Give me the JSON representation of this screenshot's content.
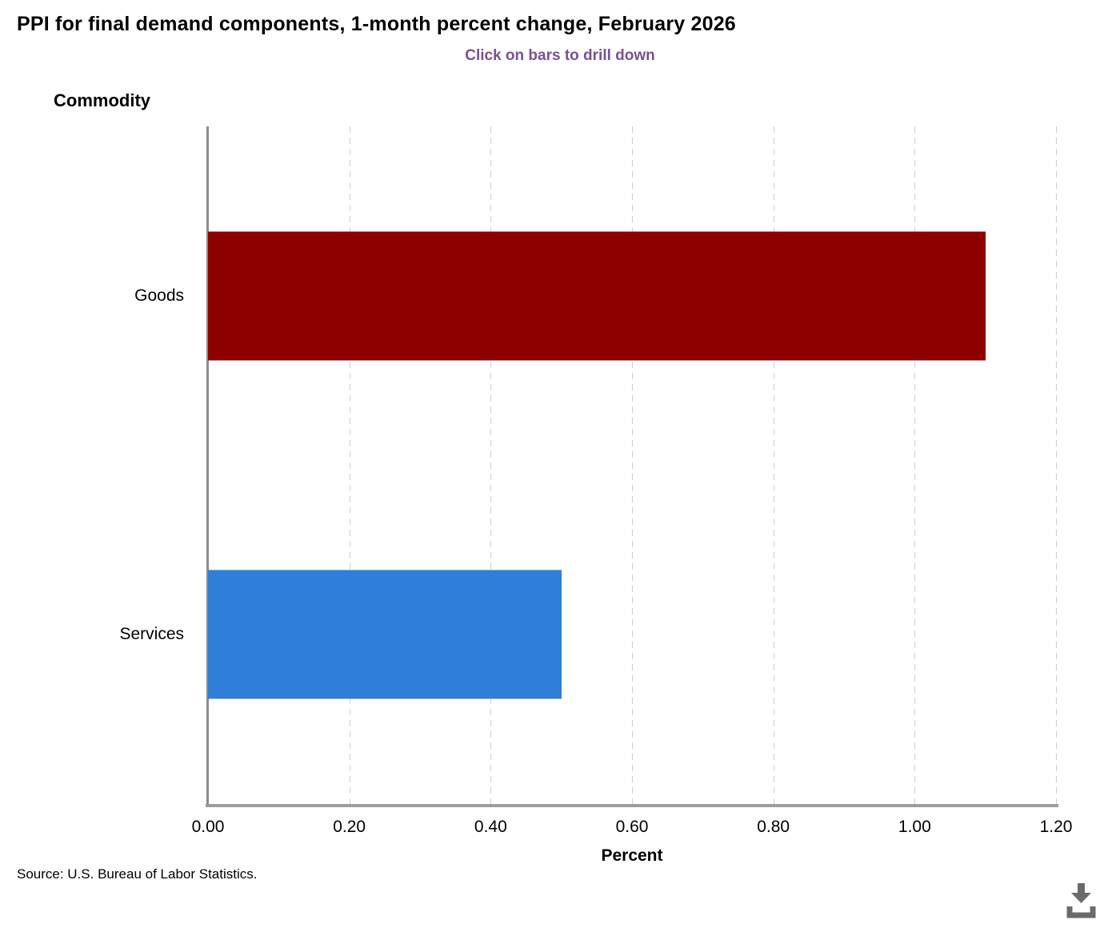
{
  "header": {
    "title": "PPI for final demand components, 1-month percent change, February 2026",
    "subtitle": "Click on bars to drill down"
  },
  "chart_data": {
    "type": "bar",
    "orientation": "horizontal",
    "title": "PPI for final demand components, 1-month percent change, February 2026",
    "subtitle": "Click on bars to drill down",
    "category_axis_title": "Commodity",
    "categories": [
      "Goods",
      "Services"
    ],
    "values": [
      1.1,
      0.5
    ],
    "bar_colors": [
      "#8e0000",
      "#2f7ed8"
    ],
    "xlabel": "Percent",
    "xlim": [
      0,
      1.2
    ],
    "x_ticks": [
      "0.00",
      "0.20",
      "0.40",
      "0.60",
      "0.80",
      "1.00",
      "1.20"
    ],
    "grid": "vertical-dashed",
    "legend": "none"
  },
  "footer": {
    "source": "Source: U.S. Bureau of Labor Statistics."
  },
  "icons": {
    "download": "download-icon"
  },
  "colors": {
    "subtitle_text": "#7a5195",
    "gridline": "#cfcfcf",
    "axis_line": "#8d8d8d",
    "download_icon": "#6b6b6b"
  }
}
